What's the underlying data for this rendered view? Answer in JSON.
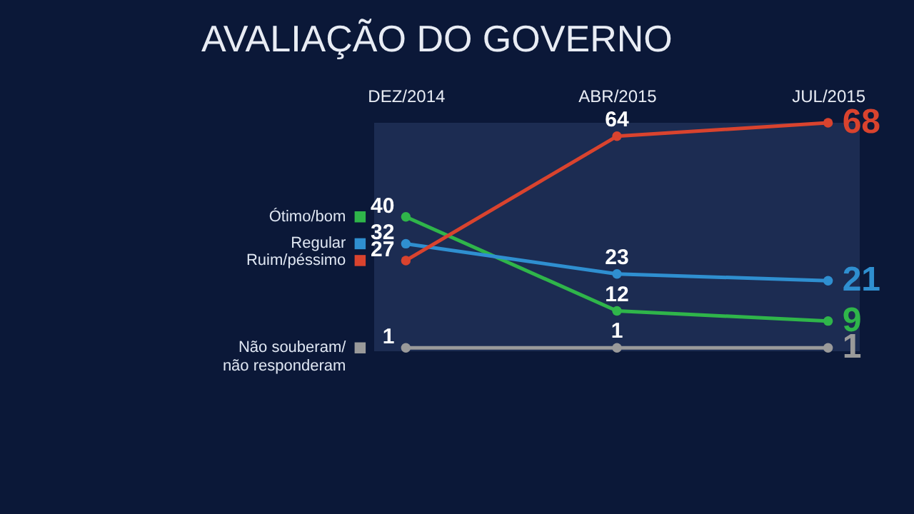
{
  "chart_data": {
    "type": "line",
    "title": "AVALIAÇÃO DO GOVERNO",
    "categories": [
      "DEZ/2014",
      "ABR/2015",
      "JUL/2015"
    ],
    "series": [
      {
        "name": "Ótimo/bom",
        "color": "#2fb54a",
        "values": [
          40,
          12,
          9
        ]
      },
      {
        "name": "Regular",
        "color": "#2f8fd0",
        "values": [
          32,
          23,
          21
        ]
      },
      {
        "name": "Ruim/péssimo",
        "color": "#d9432e",
        "values": [
          27,
          64,
          68
        ]
      },
      {
        "name": "Não souberam/\nnão responderam",
        "color": "#9a9a9a",
        "values": [
          1,
          1,
          1
        ]
      }
    ],
    "data_labels": true,
    "legend": "left",
    "grid": false,
    "marker": "circle",
    "line_style": "solid"
  }
}
